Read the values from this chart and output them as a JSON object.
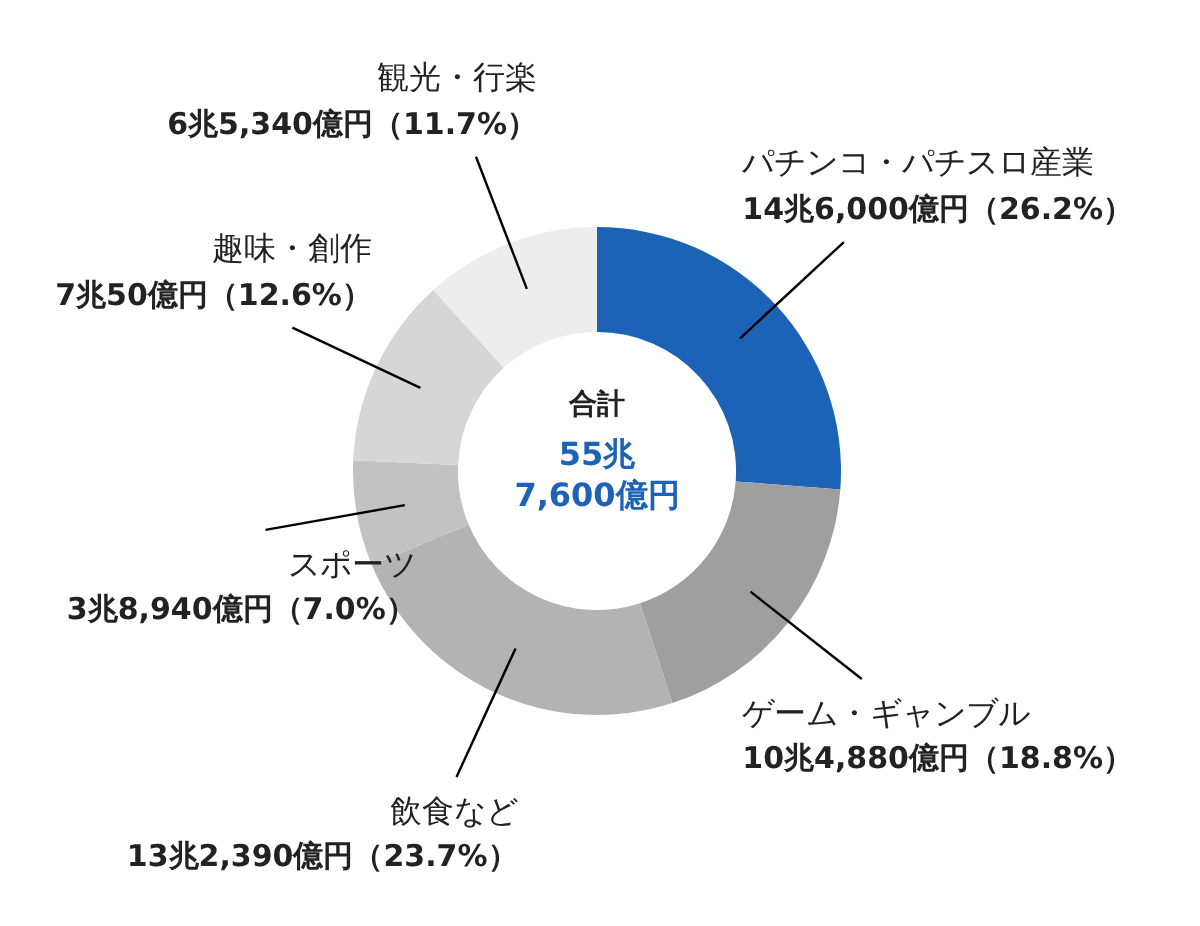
{
  "chart_data": {
    "type": "donut",
    "categories": [
      "パチンコ・パチスロ産業",
      "ゲーム・ギャンブル",
      "飲食など",
      "スポーツ",
      "趣味・創作",
      "観光・行楽"
    ],
    "values": [
      26.2,
      18.8,
      23.7,
      7.0,
      12.6,
      11.7
    ],
    "colors": [
      "#1c63b7",
      "#9f9f9f",
      "#b3b3b3",
      "#c2c2c2",
      "#d6d6d6",
      "#ededed"
    ],
    "value_labels": [
      "14兆6,000億円（26.2%）",
      "10兆4,880億円（18.8%）",
      "13兆2,390億円（23.7%）",
      "3兆8,940億円（7.0%）",
      "7兆50億円（12.6%）",
      "6兆5,340億円（11.7%）"
    ],
    "annotations": [
      "合計",
      "55兆\n7,600億円"
    ]
  }
}
